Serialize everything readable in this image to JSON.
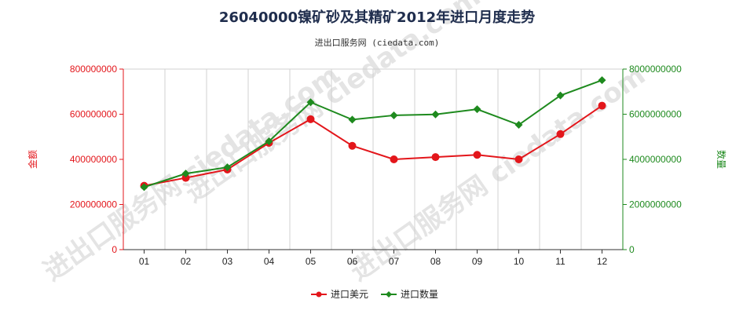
{
  "title": "26040000镍矿砂及其精矿2012年进口月度走势",
  "subtitle": "进出口服务网 (ciedata.com)",
  "watermark": "进出口服务网 ciedata.com",
  "colors": {
    "series_value": "#e3161b",
    "series_qty": "#1e8a1e",
    "axis": "#333333",
    "grid": "#d0d0d0"
  },
  "chart_data": {
    "type": "line",
    "title": "26040000镍矿砂及其精矿2012年进口月度走势",
    "categories": [
      "01",
      "02",
      "03",
      "04",
      "05",
      "06",
      "07",
      "08",
      "09",
      "10",
      "11",
      "12"
    ],
    "y_left": {
      "label": "金额",
      "lim": [
        0,
        800000000
      ],
      "ticks": [
        0,
        200000000,
        400000000,
        600000000,
        800000000
      ],
      "tick_labels": [
        "0",
        "200000000",
        "400000000",
        "600000000",
        "800000000"
      ]
    },
    "y_right": {
      "label": "数量",
      "lim": [
        0,
        8000000000
      ],
      "ticks": [
        0,
        2000000000,
        4000000000,
        6000000000,
        8000000000
      ],
      "tick_labels": [
        "0",
        "2000000000",
        "4000000000",
        "6000000000",
        "8000000000"
      ]
    },
    "series": [
      {
        "name": "进口美元",
        "axis": "left",
        "marker": "circle",
        "values": [
          283000000,
          318000000,
          355000000,
          473000000,
          578000000,
          460000000,
          400000000,
          410000000,
          420000000,
          400000000,
          512000000,
          638000000
        ]
      },
      {
        "name": "进口数量",
        "axis": "right",
        "marker": "diamond",
        "values": [
          2770000000,
          3370000000,
          3650000000,
          4800000000,
          6530000000,
          5760000000,
          5950000000,
          5990000000,
          6220000000,
          5530000000,
          6830000000,
          7510000000
        ]
      }
    ],
    "grid": "vertical",
    "legend": "bottom-center"
  }
}
